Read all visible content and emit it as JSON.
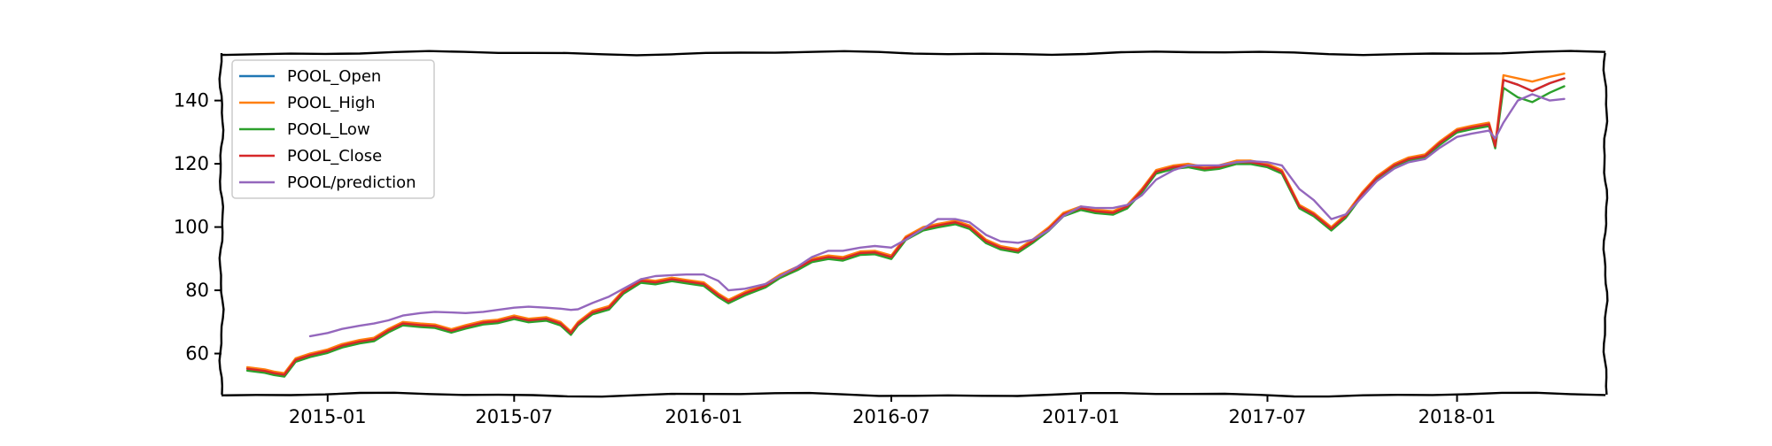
{
  "chart_data": {
    "type": "line",
    "title": "",
    "xlabel": "",
    "ylabel": "",
    "xlim": [
      "2014-09-20",
      "2018-05-25"
    ],
    "ylim": [
      47,
      155
    ],
    "x_ticks": [
      "2015-01",
      "2015-07",
      "2016-01",
      "2016-07",
      "2017-01",
      "2017-07",
      "2018-01"
    ],
    "y_ticks": [
      60,
      80,
      100,
      120,
      140
    ],
    "grid": false,
    "legend_position": "top-left",
    "x": [
      "2014-10-15",
      "2014-11-01",
      "2014-11-10",
      "2014-11-20",
      "2014-12-01",
      "2014-12-15",
      "2015-01-01",
      "2015-01-15",
      "2015-02-01",
      "2015-02-15",
      "2015-03-01",
      "2015-03-15",
      "2015-04-01",
      "2015-04-15",
      "2015-05-01",
      "2015-05-15",
      "2015-06-01",
      "2015-06-15",
      "2015-07-01",
      "2015-07-15",
      "2015-08-01",
      "2015-08-15",
      "2015-08-25",
      "2015-09-01",
      "2015-09-15",
      "2015-10-01",
      "2015-10-15",
      "2015-11-01",
      "2015-11-15",
      "2015-12-01",
      "2015-12-15",
      "2016-01-01",
      "2016-01-15",
      "2016-01-25",
      "2016-02-10",
      "2016-03-01",
      "2016-03-15",
      "2016-04-01",
      "2016-04-15",
      "2016-05-01",
      "2016-05-15",
      "2016-06-01",
      "2016-06-15",
      "2016-07-01",
      "2016-07-15",
      "2016-08-01",
      "2016-08-15",
      "2016-09-01",
      "2016-09-15",
      "2016-10-01",
      "2016-10-15",
      "2016-11-01",
      "2016-11-15",
      "2016-12-01",
      "2016-12-15",
      "2017-01-01",
      "2017-01-15",
      "2017-02-01",
      "2017-02-15",
      "2017-03-01",
      "2017-03-15",
      "2017-04-01",
      "2017-04-15",
      "2017-05-01",
      "2017-05-15",
      "2017-06-01",
      "2017-06-15",
      "2017-07-01",
      "2017-07-15",
      "2017-08-01",
      "2017-08-15",
      "2017-09-01",
      "2017-09-15",
      "2017-10-01",
      "2017-10-15",
      "2017-11-01",
      "2017-11-15",
      "2017-12-01",
      "2017-12-15",
      "2018-01-01",
      "2018-01-15",
      "2018-02-01",
      "2018-02-07",
      "2018-02-15",
      "2018-03-01",
      "2018-03-15",
      "2018-04-01",
      "2018-04-15"
    ],
    "series": [
      {
        "name": "POOL_Open",
        "color": "#1f77b4",
        "values": [
          55.2,
          54.5,
          53.8,
          53.3,
          58.0,
          59.5,
          60.8,
          62.5,
          63.8,
          64.5,
          67.3,
          69.5,
          69.0,
          68.7,
          67.2,
          68.5,
          69.8,
          70.2,
          71.5,
          70.5,
          71.0,
          69.5,
          66.5,
          69.5,
          73.0,
          74.5,
          79.5,
          83.0,
          82.5,
          83.5,
          82.8,
          82.0,
          78.5,
          76.5,
          79.0,
          81.5,
          84.5,
          87.0,
          89.5,
          90.5,
          90.0,
          91.8,
          92.0,
          90.5,
          96.5,
          99.5,
          100.5,
          101.5,
          100.0,
          95.5,
          93.5,
          92.5,
          95.5,
          99.5,
          104.0,
          106.0,
          105.0,
          104.5,
          106.5,
          111.5,
          117.5,
          119.0,
          119.5,
          118.5,
          119.0,
          120.5,
          120.5,
          119.5,
          117.5,
          106.5,
          104.0,
          99.5,
          103.5,
          110.5,
          115.5,
          119.5,
          121.5,
          122.5,
          126.5,
          130.5,
          131.5,
          132.5,
          125.5,
          146.5,
          145.0,
          143.0,
          145.5,
          147.0
        ]
      },
      {
        "name": "POOL_High",
        "color": "#ff7f0e",
        "values": [
          55.7,
          55.0,
          54.3,
          53.8,
          58.5,
          60.0,
          61.3,
          63.0,
          64.3,
          65.0,
          67.8,
          70.0,
          69.5,
          69.2,
          67.7,
          69.0,
          70.3,
          70.7,
          72.0,
          71.0,
          71.5,
          70.0,
          67.0,
          70.0,
          73.5,
          75.0,
          80.0,
          83.5,
          83.0,
          84.0,
          83.3,
          82.5,
          79.0,
          77.0,
          79.5,
          82.0,
          85.0,
          87.5,
          90.0,
          91.0,
          90.5,
          92.3,
          92.5,
          91.0,
          97.0,
          100.0,
          101.0,
          102.0,
          100.5,
          96.0,
          94.0,
          93.0,
          96.0,
          100.0,
          104.5,
          106.5,
          105.5,
          105.0,
          107.0,
          112.0,
          118.0,
          119.5,
          120.0,
          119.0,
          119.5,
          121.0,
          121.0,
          120.0,
          118.0,
          107.0,
          104.5,
          100.0,
          104.0,
          111.0,
          116.0,
          120.0,
          122.0,
          123.0,
          127.0,
          131.0,
          132.0,
          133.0,
          126.0,
          148.0,
          147.0,
          146.0,
          147.5,
          148.5
        ]
      },
      {
        "name": "POOL_Low",
        "color": "#2ca02c",
        "values": [
          54.6,
          53.9,
          53.2,
          52.7,
          57.4,
          58.9,
          60.2,
          61.9,
          63.2,
          63.9,
          66.7,
          68.9,
          68.4,
          68.1,
          66.6,
          67.9,
          69.2,
          69.6,
          70.9,
          69.9,
          70.4,
          68.9,
          65.9,
          68.9,
          72.4,
          73.9,
          78.9,
          82.4,
          81.9,
          82.9,
          82.2,
          81.4,
          77.9,
          75.9,
          78.4,
          80.9,
          83.9,
          86.4,
          88.9,
          89.9,
          89.4,
          91.2,
          91.4,
          89.9,
          95.9,
          98.9,
          99.9,
          100.9,
          99.4,
          94.9,
          92.9,
          91.9,
          94.9,
          98.9,
          103.4,
          105.4,
          104.4,
          103.9,
          105.9,
          110.9,
          116.9,
          118.4,
          118.9,
          117.9,
          118.4,
          119.9,
          119.9,
          118.9,
          116.9,
          105.9,
          103.4,
          98.9,
          102.9,
          109.9,
          114.9,
          118.9,
          120.9,
          121.9,
          125.9,
          129.9,
          130.9,
          131.9,
          124.9,
          144.0,
          141.0,
          139.5,
          142.5,
          144.5
        ]
      },
      {
        "name": "POOL_Close",
        "color": "#d62728",
        "values": [
          55.2,
          54.5,
          53.8,
          53.3,
          58.0,
          59.5,
          60.8,
          62.5,
          63.8,
          64.5,
          67.3,
          69.5,
          69.0,
          68.7,
          67.2,
          68.5,
          69.8,
          70.2,
          71.5,
          70.5,
          71.0,
          69.5,
          66.5,
          69.5,
          73.0,
          74.5,
          79.5,
          83.0,
          82.5,
          83.5,
          82.8,
          82.0,
          78.5,
          76.5,
          79.0,
          81.5,
          84.5,
          87.0,
          89.5,
          90.5,
          90.0,
          91.8,
          92.0,
          90.5,
          96.5,
          99.5,
          100.5,
          101.5,
          100.0,
          95.5,
          93.5,
          92.5,
          95.5,
          99.5,
          104.0,
          106.0,
          105.0,
          104.5,
          106.5,
          111.5,
          117.5,
          119.0,
          119.5,
          118.5,
          119.0,
          120.5,
          120.5,
          119.5,
          117.5,
          106.5,
          104.0,
          99.5,
          103.5,
          110.5,
          115.5,
          119.5,
          121.5,
          122.5,
          126.5,
          130.5,
          131.5,
          132.5,
          125.5,
          146.5,
          145.0,
          143.0,
          145.5,
          147.0
        ]
      },
      {
        "name": "POOL/prediction",
        "color": "#9467bd",
        "values": [
          null,
          null,
          null,
          null,
          null,
          65.5,
          66.5,
          67.8,
          68.8,
          69.5,
          70.5,
          72.0,
          72.8,
          73.2,
          73.0,
          72.8,
          73.2,
          73.8,
          74.5,
          74.8,
          74.5,
          74.2,
          73.8,
          74.0,
          76.0,
          78.0,
          80.5,
          83.5,
          84.5,
          84.8,
          85.0,
          85.0,
          83.0,
          80.0,
          80.5,
          82.0,
          84.5,
          87.5,
          90.5,
          92.5,
          92.5,
          93.5,
          94.0,
          93.5,
          96.0,
          99.5,
          102.5,
          102.5,
          101.5,
          97.5,
          95.5,
          95.0,
          96.0,
          99.0,
          103.5,
          106.5,
          106.0,
          106.0,
          107.0,
          110.0,
          115.0,
          118.0,
          119.5,
          119.5,
          119.5,
          120.5,
          120.8,
          120.5,
          119.5,
          112.0,
          108.5,
          102.5,
          104.0,
          109.5,
          114.5,
          118.5,
          120.5,
          121.5,
          125.0,
          128.5,
          129.5,
          130.5,
          128.0,
          133.0,
          140.0,
          142.0,
          140.0,
          140.5
        ]
      }
    ]
  }
}
